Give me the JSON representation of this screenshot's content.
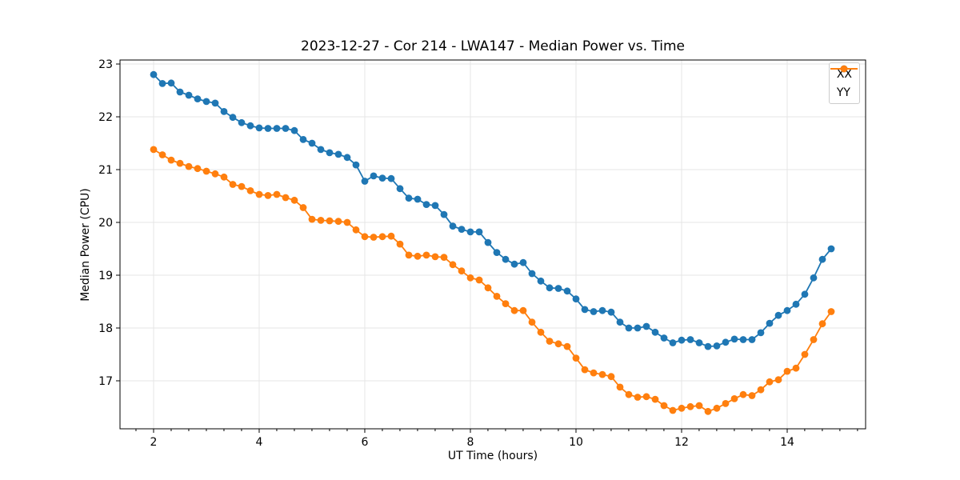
{
  "chart_data": {
    "type": "line",
    "title": "2023-12-27 - Cor 214 - LWA147 - Median Power vs. Time",
    "xlabel": "UT Time (hours)",
    "ylabel": "Median Power (CPU)",
    "xlim": [
      1.364,
      15.485
    ],
    "ylim": [
      16.091,
      23.076
    ],
    "xticks": [
      2,
      4,
      6,
      8,
      10,
      12,
      14
    ],
    "yticks": [
      17,
      18,
      19,
      20,
      21,
      22,
      23
    ],
    "x_minor_step": 0.3333,
    "grid": true,
    "legend_position": "upper right",
    "grid_color": "#e6e6e6",
    "x": [
      2.0,
      2.167,
      2.333,
      2.5,
      2.667,
      2.833,
      3.0,
      3.167,
      3.333,
      3.5,
      3.667,
      3.833,
      4.0,
      4.167,
      4.333,
      4.5,
      4.667,
      4.833,
      5.0,
      5.167,
      5.333,
      5.5,
      5.667,
      5.833,
      6.0,
      6.167,
      6.333,
      6.5,
      6.667,
      6.833,
      7.0,
      7.167,
      7.333,
      7.5,
      7.667,
      7.833,
      8.0,
      8.167,
      8.333,
      8.5,
      8.667,
      8.833,
      9.0,
      9.167,
      9.333,
      9.5,
      9.667,
      9.833,
      10.0,
      10.167,
      10.333,
      10.5,
      10.667,
      10.833,
      11.0,
      11.167,
      11.333,
      11.5,
      11.667,
      11.833,
      12.0,
      12.167,
      12.333,
      12.5,
      12.667,
      12.833,
      13.0,
      13.167,
      13.333,
      13.5,
      13.667,
      13.833,
      14.0,
      14.167,
      14.333,
      14.5,
      14.667,
      14.833
    ],
    "series": [
      {
        "name": "XX",
        "color": "#1f77b4",
        "values": [
          22.8,
          22.63,
          22.64,
          22.47,
          22.41,
          22.34,
          22.29,
          22.26,
          22.1,
          21.99,
          21.89,
          21.83,
          21.79,
          21.78,
          21.78,
          21.78,
          21.74,
          21.57,
          21.5,
          21.38,
          21.32,
          21.29,
          21.23,
          21.09,
          20.78,
          20.88,
          20.84,
          20.83,
          20.64,
          20.46,
          20.44,
          20.34,
          20.32,
          20.15,
          19.93,
          19.87,
          19.82,
          19.82,
          19.62,
          19.43,
          19.3,
          19.21,
          19.24,
          19.03,
          18.89,
          18.76,
          18.75,
          18.7,
          18.55,
          18.35,
          18.31,
          18.33,
          18.3,
          18.11,
          18.0,
          18.0,
          18.03,
          17.92,
          17.81,
          17.72,
          17.77,
          17.78,
          17.72,
          17.65,
          17.66,
          17.73,
          17.79,
          17.78,
          17.78,
          17.91,
          18.09,
          18.24,
          18.33,
          18.45,
          18.64,
          18.95,
          19.3,
          19.5
        ]
      },
      {
        "name": "YY",
        "color": "#ff7f0e",
        "values": [
          21.38,
          21.28,
          21.18,
          21.12,
          21.06,
          21.02,
          20.97,
          20.92,
          20.86,
          20.72,
          20.68,
          20.6,
          20.53,
          20.51,
          20.53,
          20.47,
          20.42,
          20.28,
          20.06,
          20.04,
          20.03,
          20.02,
          20.0,
          19.86,
          19.73,
          19.72,
          19.73,
          19.74,
          19.59,
          19.38,
          19.36,
          19.38,
          19.35,
          19.34,
          19.2,
          19.08,
          18.95,
          18.91,
          18.76,
          18.6,
          18.46,
          18.33,
          18.33,
          18.11,
          17.92,
          17.75,
          17.7,
          17.65,
          17.43,
          17.21,
          17.15,
          17.12,
          17.08,
          16.88,
          16.74,
          16.69,
          16.7,
          16.65,
          16.53,
          16.44,
          16.48,
          16.51,
          16.53,
          16.42,
          16.48,
          16.57,
          16.66,
          16.74,
          16.72,
          16.83,
          16.98,
          17.02,
          17.18,
          17.24,
          17.5,
          17.78,
          18.08,
          18.31
        ]
      }
    ]
  }
}
